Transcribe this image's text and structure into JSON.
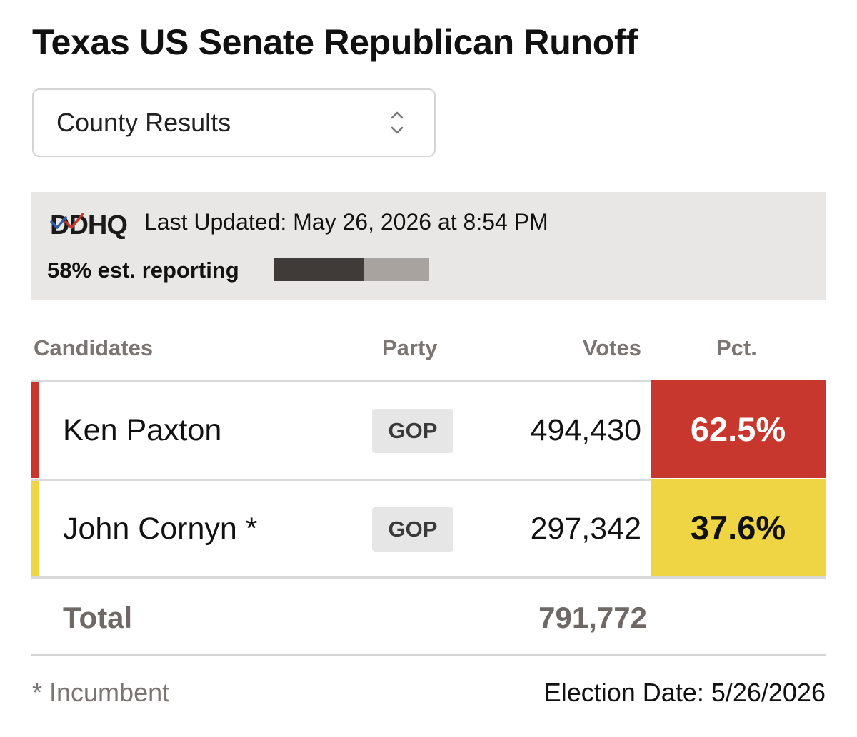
{
  "header": {
    "title": "Texas US Senate Republican Runoff"
  },
  "view_select": {
    "selected": "County Results"
  },
  "status": {
    "logo_text": "DDHQ",
    "last_updated": "Last Updated: May 26, 2026 at 8:54 PM",
    "reporting_label": "58% est. reporting",
    "reporting_fraction": 0.58,
    "colors": {
      "fill": "#403b38",
      "track": "#a8a39f"
    }
  },
  "table": {
    "headers": {
      "candidates": "Candidates",
      "party": "Party",
      "votes": "Votes",
      "pct": "Pct."
    },
    "rows": [
      {
        "name": "Ken Paxton",
        "party": "GOP",
        "votes": "494,430",
        "pct": "62.5%",
        "color": "#c8372d",
        "pct_text_color": "#ffffff"
      },
      {
        "name": "John Cornyn *",
        "party": "GOP",
        "votes": "297,342",
        "pct": "37.6%",
        "color": "#efd544",
        "pct_text_color": "#111111"
      }
    ],
    "total_label": "Total",
    "total_votes": "791,772"
  },
  "footer": {
    "incumbent_note": "* Incumbent",
    "election_date": "Election Date: 5/26/2026"
  }
}
